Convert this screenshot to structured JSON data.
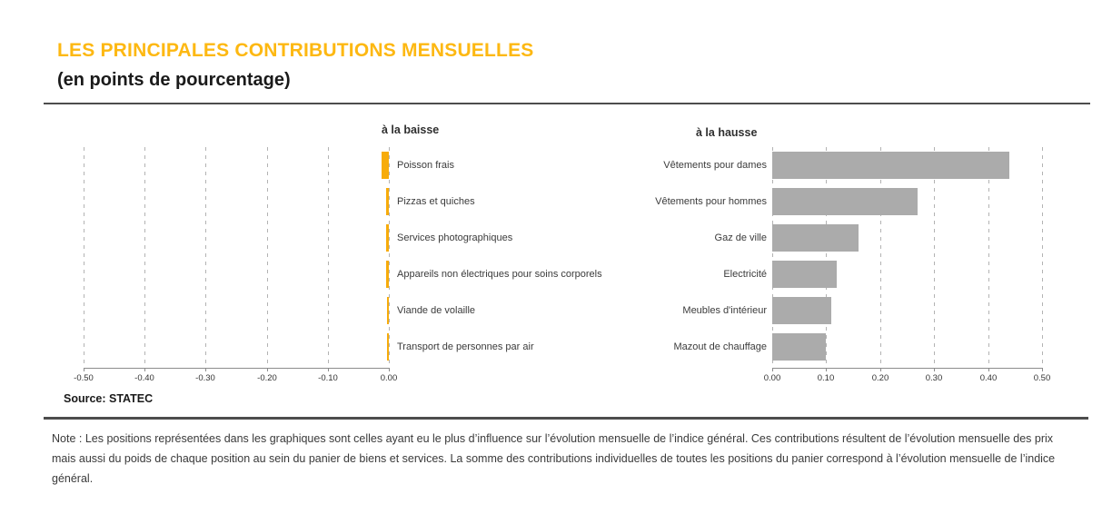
{
  "page": {
    "title": "LES PRINCIPALES CONTRIBUTIONS MENSUELLES",
    "subtitle": "(en points de pourcentage)",
    "source_label": "Source: STATEC",
    "note": "Note : Les positions représentées dans les graphiques sont celles ayant eu le plus d’influence sur l’évolution mensuelle de l’indice général. Ces contributions résultent de l’évolution mensuelle des prix mais aussi du poids de chaque position au sein du panier de biens et services. La somme des contributions individuelles de toutes les positions du panier correspond à l’évolution mensuelle de l’indice général."
  },
  "colors": {
    "accent_yellow": "#FDB812",
    "bar_yellow": "#F7AC0B",
    "bar_gray": "#ABABAB",
    "grid_gray": "#B3B3B3",
    "rule_gray": "#4D4D4D"
  },
  "chart_data": [
    {
      "type": "bar",
      "orientation": "horizontal",
      "title": "à la baisse",
      "legend_position": "none",
      "grid": "dashed-vertical",
      "categories": [
        "Poisson frais",
        "Pizzas et quiches",
        "Services photographiques",
        "Appareils non électriques pour soins corporels",
        "Viande de volaille",
        "Transport de personnes par air"
      ],
      "values": [
        -0.012,
        -0.004,
        -0.004,
        -0.004,
        -0.003,
        -0.003
      ],
      "xlabel": "",
      "ylabel": "",
      "xlim": [
        -0.5,
        0
      ],
      "tick_labels": [
        "-0.50",
        "-0.40",
        "-0.30",
        "-0.20",
        "-0.10",
        "0.00"
      ],
      "bar_color": "#F7AC0B"
    },
    {
      "type": "bar",
      "orientation": "horizontal",
      "title": "à la hausse",
      "legend_position": "none",
      "grid": "dashed-vertical",
      "categories": [
        "Vêtements pour dames",
        "Vêtements pour hommes",
        "Gaz de ville",
        "Electricité",
        "Meubles d'intérieur",
        "Mazout de chauffage"
      ],
      "values": [
        0.44,
        0.27,
        0.16,
        0.12,
        0.11,
        0.1
      ],
      "xlabel": "",
      "ylabel": "",
      "xlim": [
        0,
        0.5
      ],
      "tick_labels": [
        "0.00",
        "0.10",
        "0.20",
        "0.30",
        "0.40",
        "0.50"
      ],
      "bar_color": "#ABABAB"
    }
  ]
}
